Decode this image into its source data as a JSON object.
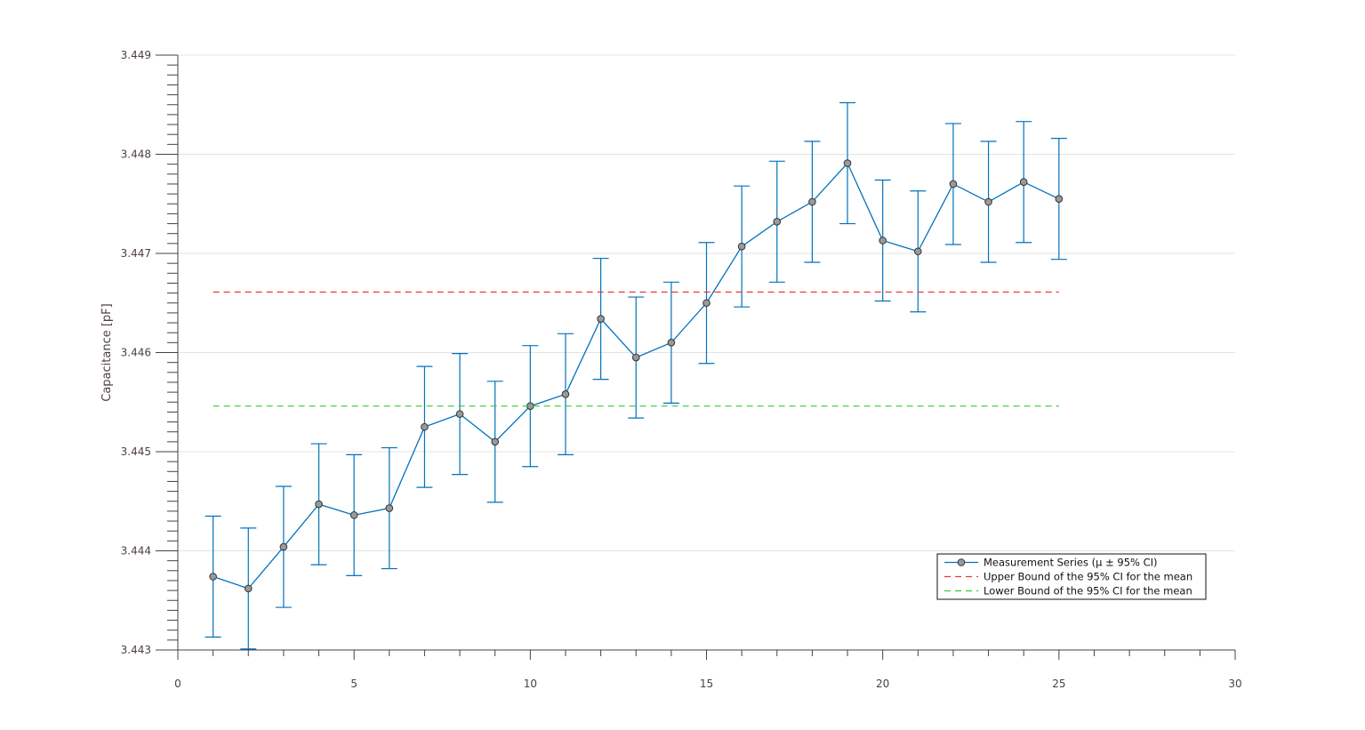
{
  "chart_data": {
    "type": "line",
    "title": "",
    "xlabel": "",
    "ylabel": "Capacitance [pF]",
    "xlim": [
      0,
      30
    ],
    "ylim": [
      3.443,
      3.449
    ],
    "x_ticks": [
      0,
      5,
      10,
      15,
      20,
      25,
      30
    ],
    "y_ticks": [
      3.443,
      3.444,
      3.445,
      3.446,
      3.447,
      3.448,
      3.449
    ],
    "x_tick_labels": [
      "0",
      "5",
      "10",
      "15",
      "20",
      "25",
      "30"
    ],
    "y_tick_labels": [
      "3.443",
      "3.444",
      "3.445",
      "3.446",
      "3.447",
      "3.448",
      "3.449"
    ],
    "grid": "horizontal",
    "legend_position": "bottom-right",
    "series": [
      {
        "name": "Measurement Series (μ ± 95% CI)",
        "style": "line-markers-errorbars",
        "color": "#0072bd",
        "marker_color": "#999999",
        "x": [
          1,
          2,
          3,
          4,
          5,
          6,
          7,
          8,
          9,
          10,
          11,
          12,
          13,
          14,
          15,
          16,
          17,
          18,
          19,
          20,
          21,
          22,
          23,
          24,
          25
        ],
        "y": [
          3.44374,
          3.44362,
          3.44404,
          3.44447,
          3.44436,
          3.44443,
          3.44525,
          3.44538,
          3.4451,
          3.44546,
          3.44558,
          3.44634,
          3.44595,
          3.4461,
          3.4465,
          3.44707,
          3.44732,
          3.44752,
          3.44791,
          3.44713,
          3.44702,
          3.4477,
          3.44752,
          3.44772,
          3.44755
        ],
        "ci_half_width": [
          0.00061,
          0.00061,
          0.00061,
          0.00061,
          0.00061,
          0.00061,
          0.00061,
          0.00061,
          0.00061,
          0.00061,
          0.00061,
          0.00061,
          0.00061,
          0.00061,
          0.00061,
          0.00061,
          0.00061,
          0.00061,
          0.00061,
          0.00061,
          0.00061,
          0.00061,
          0.00061,
          0.00061,
          0.00061
        ]
      },
      {
        "name": "Upper Bound of the 95% CI for the mean",
        "style": "dashed",
        "color": "#e8393b",
        "x": [
          1,
          25
        ],
        "y": [
          3.44661,
          3.44661
        ]
      },
      {
        "name": "Lower Bound of the 95% CI for the mean",
        "style": "dashed",
        "color": "#33cc33",
        "x": [
          1,
          25
        ],
        "y": [
          3.44546,
          3.44546
        ]
      }
    ]
  }
}
